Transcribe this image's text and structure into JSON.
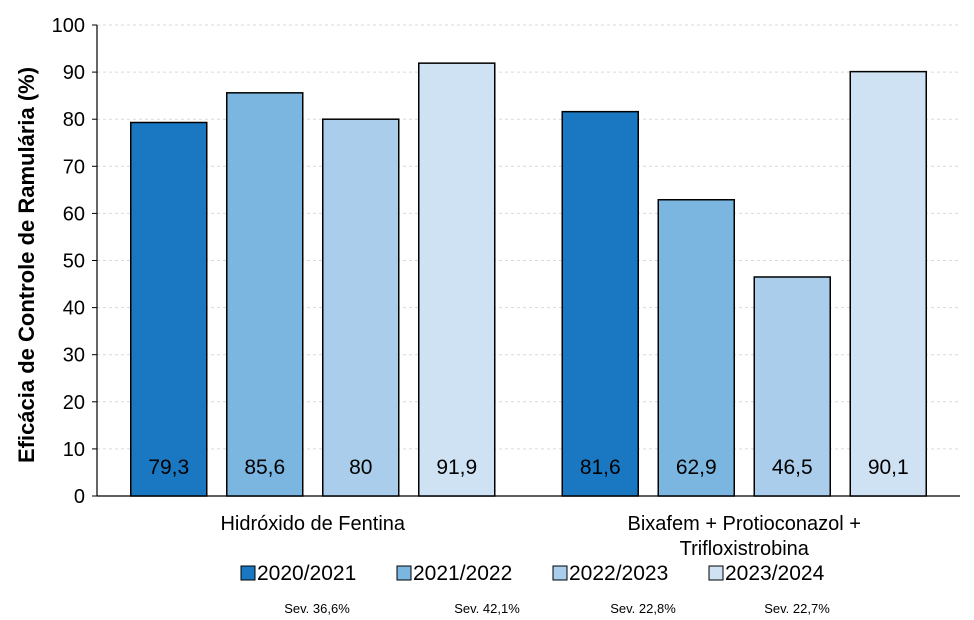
{
  "chart_data": {
    "type": "bar",
    "title": "",
    "ylabel": "Eficácia de Controle de Ramulária (%)",
    "xlabel": "",
    "ylim": [
      0,
      100
    ],
    "yticks": [
      "0",
      "10",
      "20",
      "30",
      "40",
      "50",
      "60",
      "70",
      "80",
      "90",
      "100"
    ],
    "grid": true,
    "legend_position": "bottom",
    "categories": [
      {
        "lines": [
          "Hidróxido de Fentina"
        ]
      },
      {
        "lines": [
          "Bixafem + Protioconazol +",
          "Trifloxistrobina"
        ]
      }
    ],
    "series": [
      {
        "name": "2020/2021",
        "color": "#1a78c2",
        "values": [
          79.3,
          81.6
        ],
        "labels": [
          "79,3",
          "81,6"
        ]
      },
      {
        "name": "2021/2022",
        "color": "#7ab6e0",
        "values": [
          85.6,
          62.9
        ],
        "labels": [
          "85,6",
          "62,9"
        ]
      },
      {
        "name": "2022/2023",
        "color": "#a9cdea",
        "values": [
          80,
          46.5
        ],
        "labels": [
          "80",
          "46,5"
        ]
      },
      {
        "name": "2023/2024",
        "color": "#cfe2f3",
        "values": [
          91.9,
          90.1
        ],
        "labels": [
          "91,9",
          "90,1"
        ]
      }
    ],
    "severity_notes": [
      "Sev. 36,6%",
      "Sev. 42,1%",
      "Sev. 22,8%",
      "Sev. 22,7%"
    ]
  }
}
